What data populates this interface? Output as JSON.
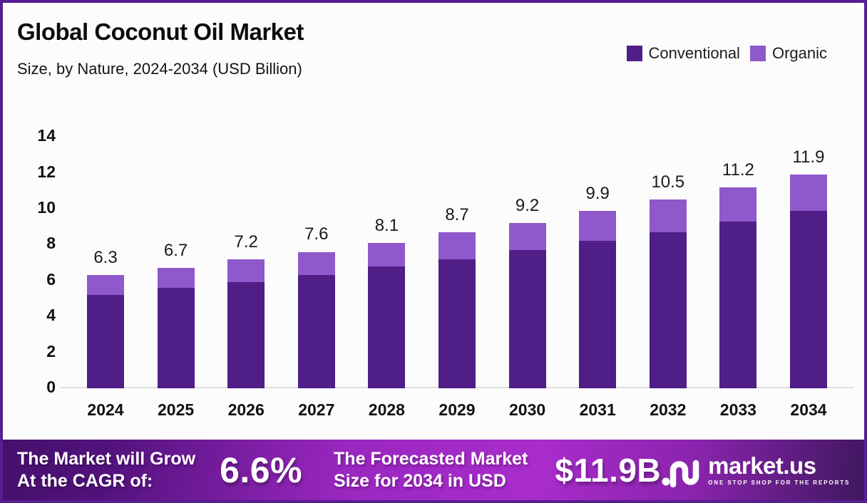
{
  "page": {
    "title": "Global Coconut Oil Market",
    "subtitle": "Size, by Nature, 2024-2034 (USD Billion)"
  },
  "legend": [
    {
      "label": "Conventional",
      "color": "#4F1E87"
    },
    {
      "label": "Organic",
      "color": "#8F58CB"
    }
  ],
  "chart_data": {
    "type": "bar",
    "stacked": true,
    "title": "Global Coconut Oil Market Size, by Nature, 2024-2034 (USD Billion)",
    "xlabel": "",
    "ylabel": "USD Billion",
    "categories": [
      "2024",
      "2025",
      "2026",
      "2027",
      "2028",
      "2029",
      "2030",
      "2031",
      "2032",
      "2033",
      "2034"
    ],
    "series": [
      {
        "name": "Conventional",
        "color": "#4F1E87",
        "values": [
          5.2,
          5.6,
          5.9,
          6.3,
          6.8,
          7.2,
          7.7,
          8.2,
          8.7,
          9.3,
          9.9
        ]
      },
      {
        "name": "Organic",
        "color": "#8F58CB",
        "values": [
          1.1,
          1.1,
          1.3,
          1.3,
          1.3,
          1.5,
          1.5,
          1.7,
          1.8,
          1.9,
          2.0
        ]
      }
    ],
    "totals": [
      6.3,
      6.7,
      7.2,
      7.6,
      8.1,
      8.7,
      9.2,
      9.9,
      10.5,
      11.2,
      11.9
    ],
    "total_labels": [
      "6.3",
      "6.7",
      "7.2",
      "7.6",
      "8.1",
      "8.7",
      "9.2",
      "9.9",
      "10.5",
      "11.2",
      "11.9"
    ],
    "yticks": [
      0,
      2,
      4,
      6,
      8,
      10,
      12,
      14
    ],
    "ylim": [
      0,
      14
    ],
    "grid": false,
    "legend_position": "top-right"
  },
  "footer": {
    "cagr_label_line1": "The Market will Grow",
    "cagr_label_line2": "At the CAGR of:",
    "cagr_value": "6.6%",
    "forecast_label_line1": "The Forecasted Market",
    "forecast_label_line2": "Size for 2034 in USD",
    "forecast_value": "$11.9B",
    "brand_name": "market.us",
    "brand_tagline": "ONE STOP SHOP FOR THE REPORTS"
  },
  "colors": {
    "conventional": "#4F1E87",
    "organic": "#8F58CB",
    "frame_border": "#571E92",
    "axis_line": "#DEDEDE",
    "background": "#FDFCFD",
    "footer_gradient_start": "#45106B",
    "footer_gradient_mid": "#A92CCB",
    "footer_gradient_end": "#3F175F"
  },
  "icons": {
    "brand_mark": "marketus-squiggle-icon"
  }
}
